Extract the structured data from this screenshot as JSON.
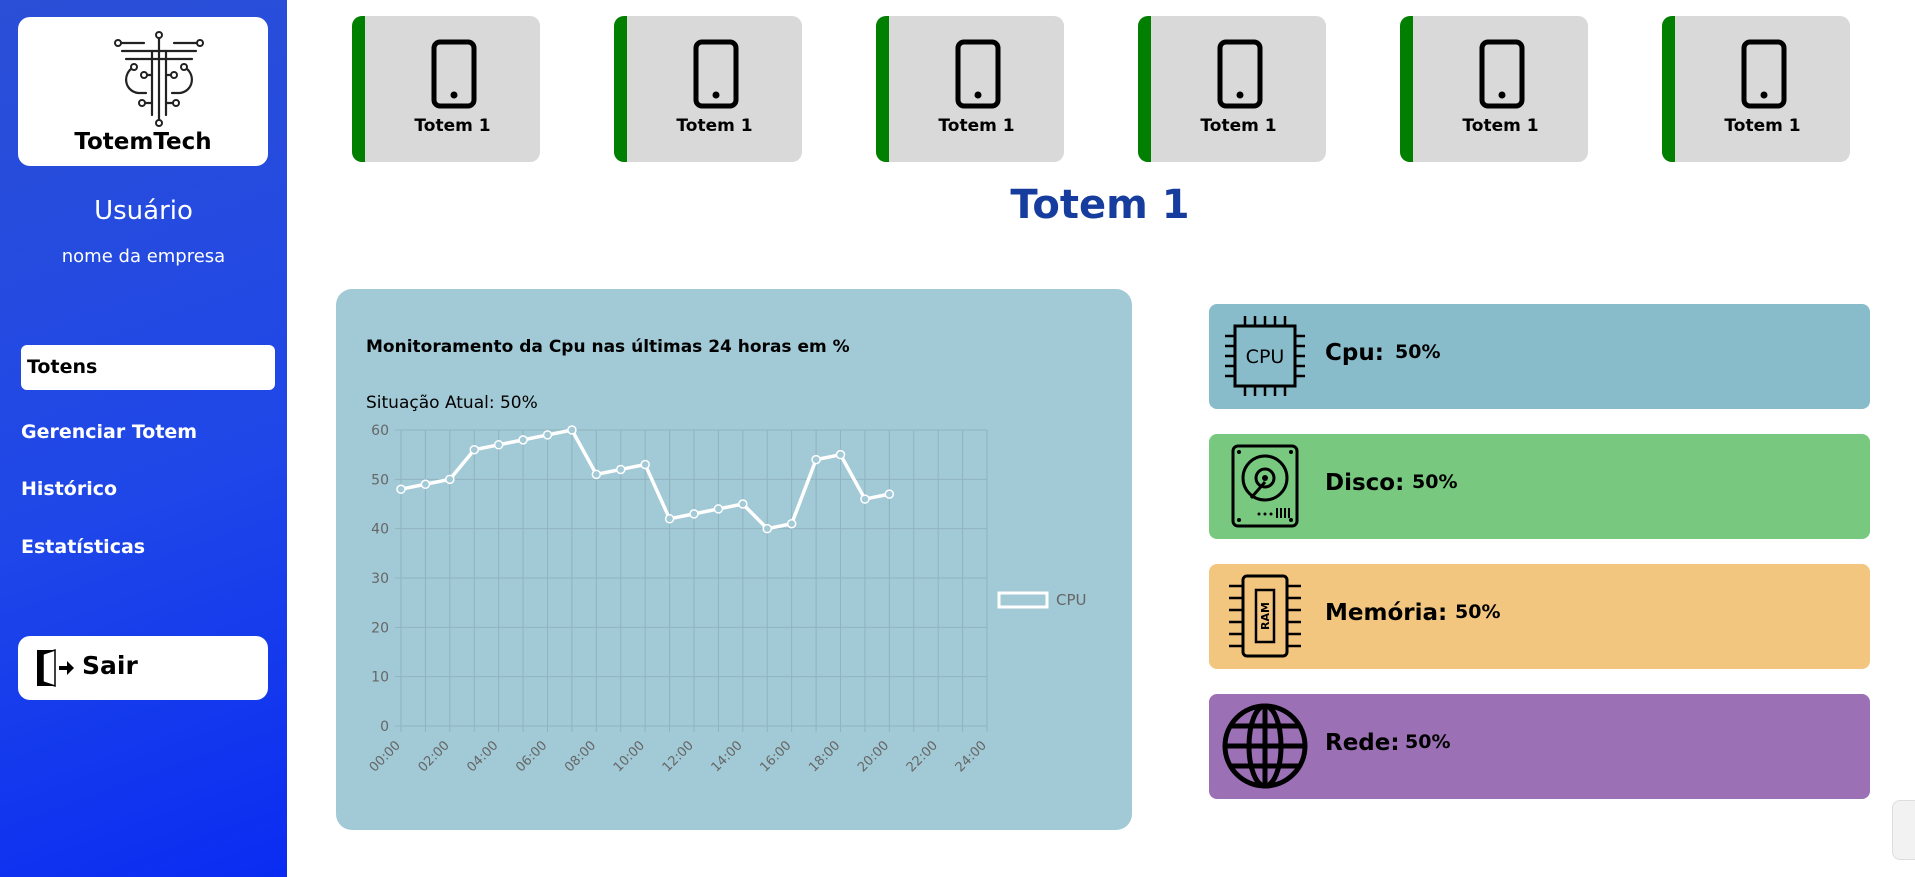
{
  "sidebar": {
    "brand": "TotemTech",
    "user": "Usuário",
    "company": "nome da empresa",
    "nav": [
      {
        "label": "Totens"
      },
      {
        "label": "Gerenciar Totem"
      },
      {
        "label": "Histórico"
      },
      {
        "label": "Estatísticas"
      }
    ],
    "logout": "Sair"
  },
  "totems": [
    {
      "label": "Totem 1",
      "icon": "phone-icon",
      "status_color": "#007f00"
    },
    {
      "label": "Totem 1",
      "icon": "phone-icon",
      "status_color": "#007f00"
    },
    {
      "label": "Totem 1",
      "icon": "phone-icon",
      "status_color": "#007f00"
    },
    {
      "label": "Totem 1",
      "icon": "phone-icon",
      "status_color": "#007f00"
    },
    {
      "label": "Totem 1",
      "icon": "phone-icon",
      "status_color": "#007f00"
    },
    {
      "label": "Totem 1",
      "icon": "phone-icon",
      "status_color": "#007f00"
    }
  ],
  "main": {
    "title": "Totem 1"
  },
  "chart_panel": {
    "title": "Monitoramento da Cpu nas últimas 24 horas em %",
    "status": "Situação Atual: 50%"
  },
  "chart_data": {
    "type": "line",
    "x": [
      "00:00",
      "01:00",
      "02:00",
      "03:00",
      "04:00",
      "05:00",
      "06:00",
      "07:00",
      "08:00",
      "09:00",
      "10:00",
      "11:00",
      "12:00",
      "13:00",
      "14:00",
      "15:00",
      "16:00",
      "17:00",
      "18:00",
      "19:00",
      "20:00"
    ],
    "x_ticks": [
      "00:00",
      "02:00",
      "04:00",
      "06:00",
      "08:00",
      "10:00",
      "12:00",
      "14:00",
      "16:00",
      "18:00",
      "20:00",
      "22:00",
      "24:00"
    ],
    "series": [
      {
        "name": "CPU",
        "values": [
          48,
          49,
          50,
          56,
          57,
          58,
          59,
          60,
          51,
          52,
          53,
          42,
          43,
          44,
          45,
          40,
          41,
          54,
          55,
          46,
          47
        ]
      }
    ],
    "ylim": [
      0,
      60
    ],
    "y_ticks": [
      0,
      10,
      20,
      30,
      40,
      50,
      60
    ],
    "grid": true,
    "legend": "right",
    "line_color": "#ffffff"
  },
  "metrics": [
    {
      "label": "Cpu:",
      "value": "50%",
      "icon": "cpu-chip-icon",
      "icon_text": "CPU",
      "color": "#89bccb"
    },
    {
      "label": "Disco:",
      "value": "50%",
      "icon": "hard-disk-icon",
      "color": "#78c97f"
    },
    {
      "label": "Memória:",
      "value": "50%",
      "icon": "ram-icon",
      "icon_text": "RAM",
      "color": "#f3c67f"
    },
    {
      "label": "Rede:",
      "value": "50%",
      "icon": "globe-icon",
      "color": "#9c70b5"
    }
  ]
}
